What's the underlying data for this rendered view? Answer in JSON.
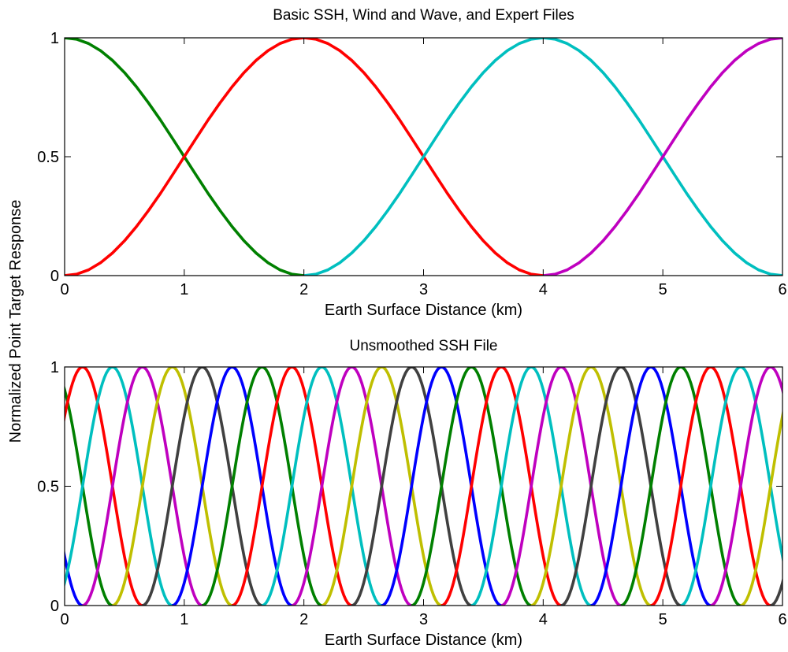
{
  "figure": {
    "ylabel": "Normalized Point Target Response"
  },
  "chart_data": [
    {
      "type": "line",
      "title": "Basic SSH, Wind and Wave, and Expert Files",
      "xlabel": "Earth Surface Distance (km)",
      "ylabel": "Normalized Point Target Response",
      "xlim": [
        0,
        6
      ],
      "ylim": [
        0,
        1
      ],
      "xticks": [
        "0",
        "1",
        "2",
        "3",
        "4",
        "5",
        "6"
      ],
      "yticks": [
        "0",
        "0.5",
        "1"
      ],
      "grid": false,
      "sample_interval_km": 0.1,
      "series": [
        {
          "color": "#008000",
          "x": [
            0,
            0.1,
            0.2,
            0.3,
            0.4,
            0.5,
            0.6,
            0.7,
            0.8,
            0.9,
            1.0,
            1.1,
            1.2,
            1.3,
            1.4,
            1.5,
            1.6,
            1.7,
            1.8,
            1.9,
            2.0
          ],
          "y": [
            1,
            0.994,
            0.976,
            0.946,
            0.905,
            0.854,
            0.794,
            0.727,
            0.655,
            0.578,
            0.5,
            0.422,
            0.345,
            0.273,
            0.206,
            0.146,
            0.095,
            0.054,
            0.024,
            0.006,
            0
          ]
        },
        {
          "color": "#ff0000",
          "x": [
            0,
            0.1,
            0.2,
            0.3,
            0.4,
            0.5,
            0.6,
            0.7,
            0.8,
            0.9,
            1.0,
            1.1,
            1.2,
            1.3,
            1.4,
            1.5,
            1.6,
            1.7,
            1.8,
            1.9,
            2.0,
            2.1,
            2.2,
            2.3,
            2.4,
            2.5,
            2.6,
            2.7,
            2.8,
            2.9,
            3.0,
            3.1,
            3.2,
            3.3,
            3.4,
            3.5,
            3.6,
            3.7,
            3.8,
            3.9,
            4.0
          ],
          "y": [
            0,
            0.006,
            0.024,
            0.054,
            0.095,
            0.146,
            0.206,
            0.273,
            0.345,
            0.422,
            0.5,
            0.578,
            0.655,
            0.727,
            0.794,
            0.854,
            0.905,
            0.946,
            0.976,
            0.994,
            1,
            0.994,
            0.976,
            0.946,
            0.905,
            0.854,
            0.794,
            0.727,
            0.655,
            0.578,
            0.5,
            0.422,
            0.345,
            0.273,
            0.206,
            0.146,
            0.095,
            0.054,
            0.024,
            0.006,
            0
          ]
        },
        {
          "color": "#00bfbf",
          "x": [
            2.0,
            2.1,
            2.2,
            2.3,
            2.4,
            2.5,
            2.6,
            2.7,
            2.8,
            2.9,
            3.0,
            3.1,
            3.2,
            3.3,
            3.4,
            3.5,
            3.6,
            3.7,
            3.8,
            3.9,
            4.0,
            4.1,
            4.2,
            4.3,
            4.4,
            4.5,
            4.6,
            4.7,
            4.8,
            4.9,
            5.0,
            5.1,
            5.2,
            5.3,
            5.4,
            5.5,
            5.6,
            5.7,
            5.8,
            5.9,
            6.0
          ],
          "y": [
            0,
            0.006,
            0.024,
            0.054,
            0.095,
            0.146,
            0.206,
            0.273,
            0.345,
            0.422,
            0.5,
            0.578,
            0.655,
            0.727,
            0.794,
            0.854,
            0.905,
            0.946,
            0.976,
            0.994,
            1,
            0.994,
            0.976,
            0.946,
            0.905,
            0.854,
            0.794,
            0.727,
            0.655,
            0.578,
            0.5,
            0.422,
            0.345,
            0.273,
            0.206,
            0.146,
            0.095,
            0.054,
            0.024,
            0.006,
            0
          ]
        },
        {
          "color": "#bf00bf",
          "x": [
            4.0,
            4.1,
            4.2,
            4.3,
            4.4,
            4.5,
            4.6,
            4.7,
            4.8,
            4.9,
            5.0,
            5.1,
            5.2,
            5.3,
            5.4,
            5.5,
            5.6,
            5.7,
            5.8,
            5.9,
            6.0
          ],
          "y": [
            0,
            0.006,
            0.024,
            0.054,
            0.095,
            0.146,
            0.206,
            0.273,
            0.345,
            0.422,
            0.5,
            0.578,
            0.655,
            0.727,
            0.794,
            0.854,
            0.905,
            0.946,
            0.976,
            0.994,
            1
          ]
        }
      ]
    },
    {
      "type": "line",
      "title": "Unsmoothed SSH File",
      "xlabel": "Earth Surface Distance (km)",
      "ylabel": "Normalized Point Target Response",
      "xlim": [
        0,
        6
      ],
      "ylim": [
        0,
        1
      ],
      "xticks": [
        "0",
        "1",
        "2",
        "3",
        "4",
        "5",
        "6"
      ],
      "yticks": [
        "0",
        "0.5",
        "1"
      ],
      "grid": false,
      "description": "Raised-cosine responses, each 0.5 km wide, peaks spaced 0.25 km apart; colors cycle in the order listed.",
      "response_width_km": 0.5,
      "peak_spacing_km": 0.25,
      "color_cycle": [
        "#0000ff",
        "#008000",
        "#ff0000",
        "#00bfbf",
        "#bf00bf",
        "#bfbf00",
        "#404040"
      ],
      "peak_positions_km": [
        -0.35,
        -0.1,
        0.15,
        0.4,
        0.65,
        0.9,
        1.15,
        1.4,
        1.65,
        1.9,
        2.15,
        2.4,
        2.65,
        2.9,
        3.15,
        3.4,
        3.65,
        3.9,
        4.15,
        4.4,
        4.65,
        4.9,
        5.15,
        5.4,
        5.65,
        5.9,
        6.15,
        6.4
      ]
    }
  ]
}
